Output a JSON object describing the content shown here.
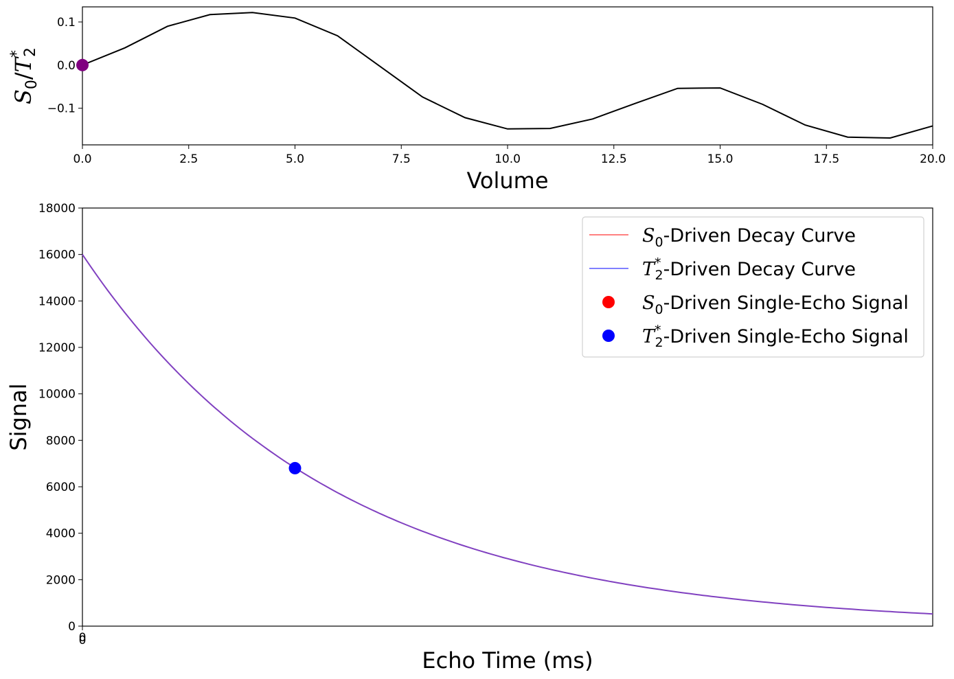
{
  "chart_data": [
    {
      "type": "line",
      "xlabel": "Volume",
      "ylabel_math": {
        "base": "S",
        "sub": "0",
        "sep": "/",
        "base2": "T",
        "sup2": "*",
        "sub2": "2"
      },
      "xlim": [
        0,
        20
      ],
      "ylim": [
        -0.185,
        0.135
      ],
      "xticks": [
        0,
        2.5,
        5,
        7.5,
        10,
        12.5,
        15,
        17.5,
        20
      ],
      "xtick_labels": [
        "0.0",
        "2.5",
        "5.0",
        "7.5",
        "10.0",
        "12.5",
        "15.0",
        "17.5",
        "20.0"
      ],
      "yticks": [
        -0.1,
        0,
        0.1
      ],
      "ytick_labels": [
        "−0.1",
        "0.0",
        "0.1"
      ],
      "series": [
        {
          "color": "#000000",
          "x": [
            0,
            1,
            2,
            3,
            4,
            5,
            6,
            7,
            8,
            9,
            10,
            11,
            12,
            13,
            14,
            15,
            16,
            17,
            18,
            19,
            20
          ],
          "y": [
            0.0,
            0.04,
            0.09,
            0.117,
            0.122,
            0.109,
            0.068,
            -0.003,
            -0.074,
            -0.122,
            -0.148,
            -0.147,
            -0.125,
            -0.089,
            -0.054,
            -0.053,
            -0.091,
            -0.139,
            -0.167,
            -0.169,
            -0.141
          ]
        }
      ],
      "marker": {
        "x": 0,
        "y": 0.0,
        "color": "#800080"
      }
    },
    {
      "type": "line",
      "xlabel": "Echo Time (ms)",
      "ylabel": "Signal",
      "xlim": [
        0,
        100
      ],
      "ylim": [
        0,
        18000
      ],
      "xtick_labels": [
        "0",
        "0"
      ],
      "yticks": [
        0,
        2000,
        4000,
        6000,
        8000,
        10000,
        12000,
        14000,
        16000,
        18000
      ],
      "ytick_labels": [
        "0",
        "2000",
        "4000",
        "6000",
        "8000",
        "10000",
        "12000",
        "14000",
        "16000",
        "18000"
      ],
      "curve": {
        "S0": 16000,
        "T2star": 29.3
      },
      "series": [
        {
          "name": "-Driven Decay Curve",
          "math": {
            "base": "S",
            "sub": "0"
          },
          "color": "#ff8080",
          "style": "line"
        },
        {
          "name": "-Driven Decay Curve",
          "math": {
            "base": "T",
            "sup": "*",
            "sub": "2"
          },
          "color": "#8080ff",
          "style": "line"
        },
        {
          "name": "-Driven Single-Echo Signal",
          "math": {
            "base": "S",
            "sub": "0"
          },
          "color": "#ff0000",
          "style": "marker"
        },
        {
          "name": "-Driven Single-Echo Signal",
          "math": {
            "base": "T",
            "sup": "*",
            "sub": "2"
          },
          "color": "#0000ff",
          "style": "marker"
        }
      ],
      "curve_color": "#8040c0",
      "points": [
        {
          "x": 25,
          "y": 6800,
          "color": "#0000ff"
        }
      ],
      "legend_loc": "upper right"
    }
  ]
}
